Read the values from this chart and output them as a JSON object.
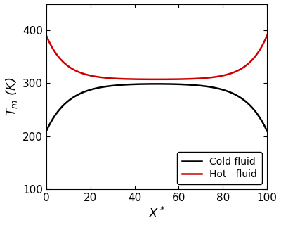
{
  "xlabel": "$X^*$",
  "ylabel": "$T_m$ (K)",
  "xlim": [
    0,
    100
  ],
  "ylim": [
    100,
    450
  ],
  "yticks": [
    100,
    200,
    300,
    400
  ],
  "xticks": [
    0,
    20,
    40,
    60,
    80,
    100
  ],
  "cold_color": "#000000",
  "hot_color": "#cc0000",
  "cold_label": "Cold fluid",
  "hot_label": "Hot   fluid",
  "linewidth": 1.8,
  "hot_T0": 307,
  "hot_k": 0.12,
  "hot_A": 83,
  "cold_Tpeak": 300,
  "cold_k": 0.1,
  "cold_A": 90,
  "legend_fontsize": 10,
  "axis_fontsize": 13,
  "tick_fontsize": 11
}
